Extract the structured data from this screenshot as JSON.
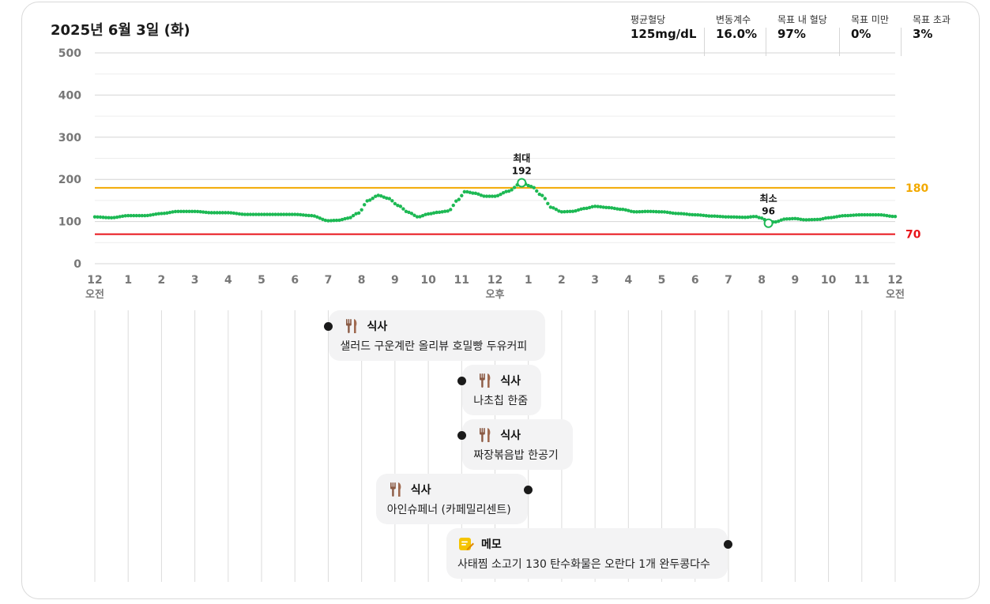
{
  "header": {
    "date": "2025년 6월 3일 (화)"
  },
  "stats": [
    {
      "label": "평균혈당",
      "value": "125mg/dL"
    },
    {
      "label": "변동계수",
      "value": "16.0%"
    },
    {
      "label": "목표 내 혈당",
      "value": "97%"
    },
    {
      "label": "목표 미만",
      "value": "0%"
    },
    {
      "label": "목표 초과",
      "value": "3%"
    }
  ],
  "chart_data": {
    "type": "scatter",
    "ylim": [
      0,
      500
    ],
    "yticks": [
      0,
      100,
      200,
      300,
      400,
      500
    ],
    "xlim": [
      0,
      24
    ],
    "xtick_labels": [
      "12",
      "1",
      "2",
      "3",
      "4",
      "5",
      "6",
      "7",
      "8",
      "9",
      "10",
      "11",
      "12",
      "1",
      "2",
      "3",
      "4",
      "5",
      "6",
      "7",
      "8",
      "9",
      "10",
      "11",
      "12"
    ],
    "xtick_sublabels": [
      {
        "hour": 0,
        "label": "오전"
      },
      {
        "hour": 12,
        "label": "오후"
      },
      {
        "hour": 24,
        "label": "오전"
      }
    ],
    "target_high": {
      "value": 180,
      "label": "180",
      "color": "#f2a900"
    },
    "target_low": {
      "value": 70,
      "label": "70",
      "color": "#e8141a"
    },
    "series_color": "#1db954",
    "keypoints": [
      [
        0,
        111
      ],
      [
        0.5,
        109
      ],
      [
        1,
        114
      ],
      [
        1.5,
        114
      ],
      [
        2,
        119
      ],
      [
        2.5,
        124
      ],
      [
        3,
        124
      ],
      [
        3.5,
        121
      ],
      [
        4,
        121
      ],
      [
        4.5,
        117
      ],
      [
        5,
        117
      ],
      [
        5.5,
        117
      ],
      [
        6,
        117
      ],
      [
        6.5,
        114
      ],
      [
        7,
        102
      ],
      [
        7.3,
        103
      ],
      [
        7.6,
        108
      ],
      [
        7.9,
        120
      ],
      [
        8.2,
        150
      ],
      [
        8.5,
        162
      ],
      [
        8.8,
        155
      ],
      [
        9.1,
        138
      ],
      [
        9.4,
        122
      ],
      [
        9.7,
        111
      ],
      [
        10,
        118
      ],
      [
        10.3,
        122
      ],
      [
        10.6,
        125
      ],
      [
        10.9,
        152
      ],
      [
        11.1,
        171
      ],
      [
        11.4,
        167
      ],
      [
        11.7,
        160
      ],
      [
        12,
        160
      ],
      [
        12.4,
        172
      ],
      [
        12.8,
        192
      ],
      [
        13.1,
        183
      ],
      [
        13.4,
        162
      ],
      [
        13.7,
        133
      ],
      [
        14,
        123
      ],
      [
        14.3,
        124
      ],
      [
        14.7,
        131
      ],
      [
        15,
        136
      ],
      [
        15.4,
        133
      ],
      [
        15.8,
        129
      ],
      [
        16.2,
        123
      ],
      [
        16.6,
        124
      ],
      [
        17,
        123
      ],
      [
        17.5,
        119
      ],
      [
        18,
        116
      ],
      [
        18.5,
        113
      ],
      [
        19,
        111
      ],
      [
        19.5,
        110
      ],
      [
        19.8,
        112
      ],
      [
        20,
        108
      ],
      [
        20.2,
        99
      ],
      [
        20.4,
        99
      ],
      [
        20.7,
        106
      ],
      [
        21,
        107
      ],
      [
        21.3,
        104
      ],
      [
        21.7,
        105
      ],
      [
        22,
        109
      ],
      [
        22.5,
        114
      ],
      [
        23,
        116
      ],
      [
        23.5,
        116
      ],
      [
        24,
        112
      ]
    ],
    "annotations": [
      {
        "hour": 12.8,
        "value": 192,
        "title": "최대",
        "value_label": "192"
      },
      {
        "hour": 20.2,
        "value": 96,
        "title": "최소",
        "value_label": "96"
      }
    ]
  },
  "events": [
    {
      "type": "meal",
      "icon": "fork-knife-icon",
      "title": "식사",
      "desc": "샐러드 구운계란 올리뷰 호밀빵 두유커피",
      "hour": 7.0,
      "side": "right"
    },
    {
      "type": "meal",
      "icon": "fork-knife-icon",
      "title": "식사",
      "desc": "나초칩 한줌",
      "hour": 11.0,
      "side": "right"
    },
    {
      "type": "meal",
      "icon": "fork-knife-icon",
      "title": "식사",
      "desc": "짜장볶음밥 한공기",
      "hour": 11.0,
      "side": "right"
    },
    {
      "type": "meal",
      "icon": "fork-knife-icon",
      "title": "식사",
      "desc": "아인슈페너 (카페밀리센트)",
      "hour": 13.0,
      "side": "left"
    },
    {
      "type": "memo",
      "icon": "memo-icon",
      "title": "메모",
      "desc": "사태찜 소고기 130 탄수화물은 오란다 1개 완두콩다수",
      "hour": 19.0,
      "side": "left"
    }
  ]
}
